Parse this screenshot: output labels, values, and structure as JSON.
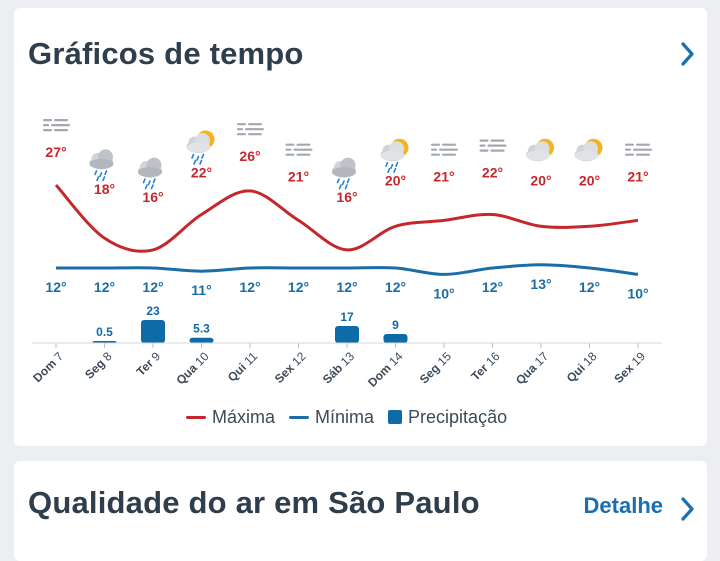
{
  "weather_card": {
    "title": "Gráficos de tempo"
  },
  "air_card": {
    "title": "Qualidade do ar em São Paulo",
    "detail_label": "Detalhe"
  },
  "colors": {
    "max": "#c4282c",
    "min": "#1a6da6",
    "precip": "#0f6aa8",
    "title": "#2f3e4c",
    "link": "#1a6fb0"
  },
  "legend": {
    "max_label": "Máxima",
    "min_label": "Mínima",
    "precip_label": "Precipitação"
  },
  "chart_data": {
    "type": "line",
    "days": [
      {
        "weekday": "Dom",
        "day": "7",
        "icon": "fog-icon",
        "max_label": "27°",
        "min_label": "12°",
        "precip_label": ""
      },
      {
        "weekday": "Seg",
        "day": "8",
        "icon": "rain-cloud-icon",
        "max_label": "18°",
        "min_label": "12°",
        "precip_label": "0.5"
      },
      {
        "weekday": "Ter",
        "day": "9",
        "icon": "rain-cloud-icon",
        "max_label": "16°",
        "min_label": "12°",
        "precip_label": "23"
      },
      {
        "weekday": "Qua",
        "day": "10",
        "icon": "sun-cloud-rain-icon",
        "max_label": "22°",
        "min_label": "11°",
        "precip_label": "5.3"
      },
      {
        "weekday": "Qui",
        "day": "11",
        "icon": "fog-icon",
        "max_label": "26°",
        "min_label": "12°",
        "precip_label": ""
      },
      {
        "weekday": "Sex",
        "day": "12",
        "icon": "fog-icon",
        "max_label": "21°",
        "min_label": "12°",
        "precip_label": ""
      },
      {
        "weekday": "Sáb",
        "day": "13",
        "icon": "rain-cloud-icon",
        "max_label": "16°",
        "min_label": "12°",
        "precip_label": "17"
      },
      {
        "weekday": "Dom",
        "day": "14",
        "icon": "sun-cloud-rain-icon",
        "max_label": "20°",
        "min_label": "12°",
        "precip_label": "9"
      },
      {
        "weekday": "Seg",
        "day": "15",
        "icon": "fog-icon",
        "max_label": "21°",
        "min_label": "10°",
        "precip_label": ""
      },
      {
        "weekday": "Ter",
        "day": "16",
        "icon": "fog-icon",
        "max_label": "22°",
        "min_label": "12°",
        "precip_label": ""
      },
      {
        "weekday": "Qua",
        "day": "17",
        "icon": "partly-cloudy-icon",
        "max_label": "20°",
        "min_label": "13°",
        "precip_label": ""
      },
      {
        "weekday": "Qui",
        "day": "18",
        "icon": "partly-cloudy-icon",
        "max_label": "20°",
        "min_label": "12°",
        "precip_label": ""
      },
      {
        "weekday": "Sex",
        "day": "19",
        "icon": "fog-icon",
        "max_label": "21°",
        "min_label": "10°",
        "precip_label": ""
      }
    ],
    "series": [
      {
        "name": "Máxima",
        "values": [
          27,
          18,
          16,
          22,
          26,
          21,
          16,
          20,
          21,
          22,
          20,
          20,
          21
        ]
      },
      {
        "name": "Mínima",
        "values": [
          12,
          12,
          12,
          11,
          12,
          12,
          12,
          12,
          10,
          12,
          13,
          12,
          10
        ]
      },
      {
        "name": "Precipitação",
        "values": [
          0,
          0.5,
          23,
          5.3,
          0,
          0,
          17,
          9,
          0,
          0,
          0,
          0,
          0
        ]
      }
    ]
  }
}
